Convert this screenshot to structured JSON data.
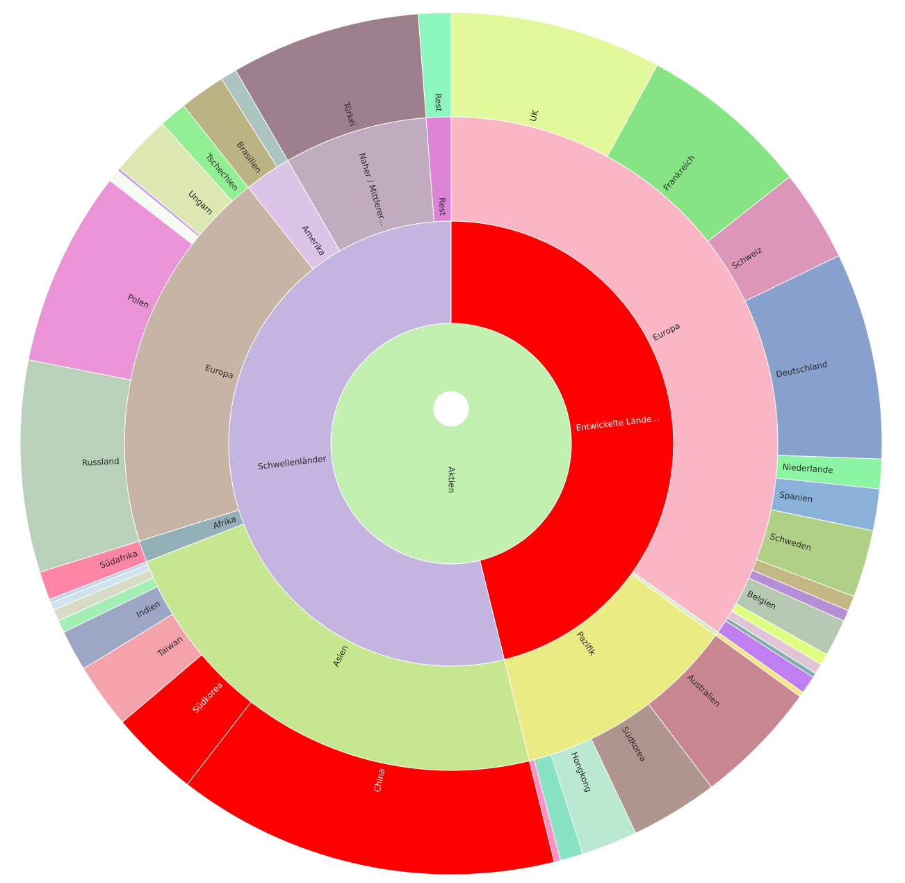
{
  "chart_data": {
    "type": "sunburst",
    "title": "",
    "value_unit": "approximate share of total (%)",
    "root": {
      "label": "Aktien",
      "color": "#c1f0b0",
      "children": [
        {
          "label": "Entwickelte Lände...",
          "color": "#ff0000",
          "children": [
            {
              "label": "Europa",
              "color": "#fab6c5",
              "children": [
                {
                  "label": "UK",
                  "value": 7.94,
                  "color": "#e1f99b"
                },
                {
                  "label": "Frankreich",
                  "value": 6.44,
                  "color": "#86e484"
                },
                {
                  "label": "Schweiz",
                  "value": 3.44,
                  "color": "#dc96b9"
                },
                {
                  "label": "Deutschland",
                  "value": 7.75,
                  "color": "#88a0ce"
                },
                {
                  "label": "Niederlande",
                  "value": 1.11,
                  "color": "#8cf5a3"
                },
                {
                  "label": "Spanien",
                  "value": 1.56,
                  "color": "#89b1d9"
                },
                {
                  "label": "Schweden",
                  "value": 2.53,
                  "color": "#b0d185"
                },
                {
                  "label": "",
                  "value": 0.56,
                  "color": "#c3b884"
                },
                {
                  "label": "",
                  "value": 0.42,
                  "color": "#b68ed6"
                },
                {
                  "label": "Belgien",
                  "value": 1.39,
                  "color": "#b5c8b1"
                },
                {
                  "label": "",
                  "value": 0.42,
                  "color": "#deff80"
                },
                {
                  "label": "",
                  "value": 0.39,
                  "color": "#e0c5d4"
                },
                {
                  "label": "",
                  "value": 0.17,
                  "color": "#7fadb0"
                },
                {
                  "label": "",
                  "value": 0.67,
                  "color": "#c07ff0"
                }
              ]
            },
            {
              "label": "",
              "color": "#d9eac7",
              "children": [
                {
                  "label": "",
                  "value": 0.19,
                  "color": "#f3e684"
                }
              ]
            },
            {
              "label": "Pazifik",
              "color": "#eaeb82",
              "children": [
                {
                  "label": "Australien",
                  "value": 4.69,
                  "color": "#c88690"
                },
                {
                  "label": "Südkorea",
                  "value": 3.28,
                  "color": "#b0958f"
                },
                {
                  "label": "Hongkong",
                  "value": 2.1,
                  "color": "#bae8d0"
                },
                {
                  "label": "",
                  "value": 0.86,
                  "color": "#88e2c4"
                },
                {
                  "label": "",
                  "value": 0.24,
                  "color": "#ff8fc4"
                }
              ]
            }
          ]
        },
        {
          "label": "Schwellenländer",
          "color": "#c3b5e0",
          "children": [
            {
              "label": "Asien",
              "color": "#c6e690",
              "children": [
                {
                  "label": "China",
                  "value": 14.33,
                  "color": "#ff0000"
                },
                {
                  "label": "Südkorea",
                  "value": 3.33,
                  "color": "#ff0000"
                },
                {
                  "label": "Taiwan",
                  "value": 2.44,
                  "color": "#f4a3aa"
                },
                {
                  "label": "Indien",
                  "value": 1.53,
                  "color": "#9da6c4"
                },
                {
                  "label": "",
                  "value": 0.47,
                  "color": "#a2efb6"
                },
                {
                  "label": "",
                  "value": 0.44,
                  "color": "#d7dcc7"
                },
                {
                  "label": "",
                  "value": 0.28,
                  "color": "#cfe3ef"
                },
                {
                  "label": "",
                  "value": 0.14,
                  "color": "#c1d6ec"
                }
              ]
            },
            {
              "label": "Afrika",
              "color": "#93b0b8",
              "children": [
                {
                  "label": "Südafrika",
                  "value": 1.06,
                  "color": "#ff85a5"
                }
              ]
            },
            {
              "label": "Europa",
              "color": "#c6b4a4",
              "children": [
                {
                  "label": "Russland",
                  "value": 7.94,
                  "color": "#b9d1b9"
                },
                {
                  "label": "Polen",
                  "value": 7.33,
                  "color": "#ea93d7"
                },
                {
                  "label": "",
                  "value": 0.47,
                  "color": "#f5fbf3"
                },
                {
                  "label": "",
                  "value": 0.11,
                  "color": "#c6a2e8"
                },
                {
                  "label": "Ungarn",
                  "value": 2.28,
                  "color": "#dce8b1"
                },
                {
                  "label": "Tschechien",
                  "value": 1.03,
                  "color": "#93ef93"
                }
              ]
            },
            {
              "label": "Amerika",
              "color": "#dcc4e8",
              "children": [
                {
                  "label": "Brasilien",
                  "value": 1.72,
                  "color": "#bcb384"
                },
                {
                  "label": "",
                  "value": 0.61,
                  "color": "#abc4c0"
                }
              ]
            },
            {
              "label": "Naher / Mittlerer...",
              "color": "#c1abbf",
              "children": [
                {
                  "label": "Türkei",
                  "value": 7.11,
                  "color": "#9d7f8b"
                }
              ]
            },
            {
              "label": "Rest",
              "color": "#dd84d6",
              "children": [
                {
                  "label": "Rest",
                  "value": 1.22,
                  "color": "#8df7c0"
                }
              ]
            }
          ]
        }
      ]
    }
  }
}
